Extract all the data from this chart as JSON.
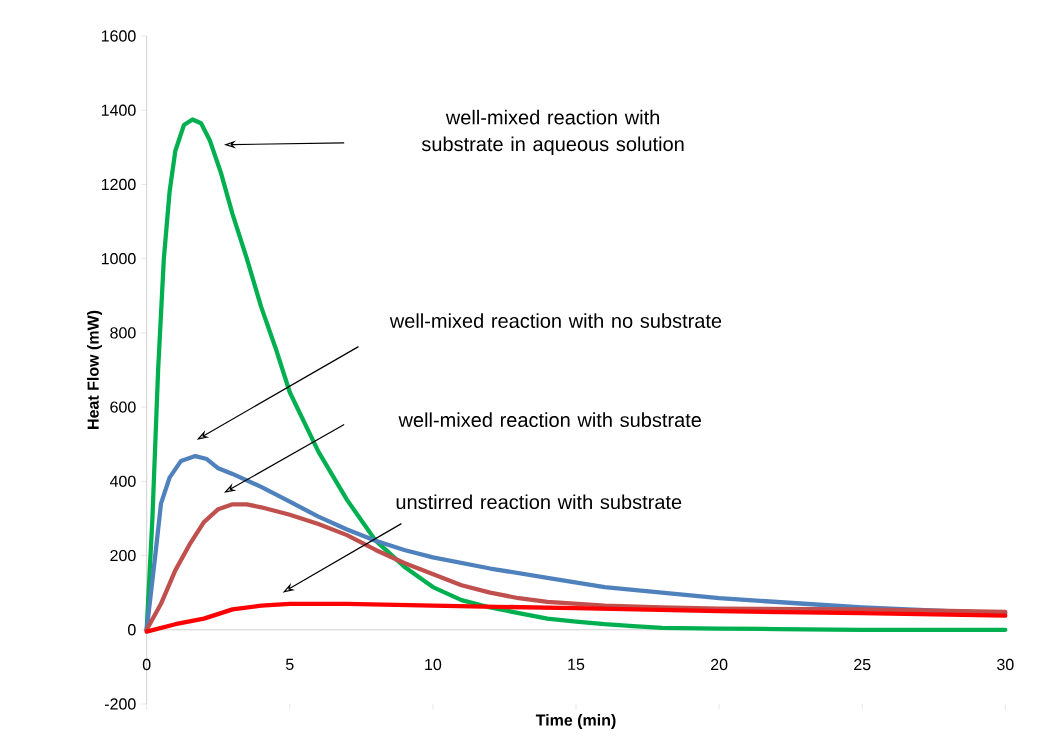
{
  "chart_data": {
    "type": "line",
    "xlabel": "Time (min)",
    "ylabel": "Heat Flow (mW)",
    "xlim": [
      0,
      30
    ],
    "ylim": [
      -200,
      1600
    ],
    "xticks": [
      0,
      5,
      10,
      15,
      20,
      25,
      30
    ],
    "yticks": [
      -200,
      0,
      200,
      400,
      600,
      800,
      1000,
      1200,
      1400,
      1600
    ],
    "grid": false,
    "marker": "none",
    "line_style": "solid",
    "series": [
      {
        "color": "#00b050",
        "x": [
          0,
          0.2,
          0.4,
          0.6,
          0.8,
          1.0,
          1.3,
          1.6,
          1.9,
          2.2,
          2.6,
          3,
          3.5,
          4,
          4.5,
          5,
          6,
          7,
          8,
          9,
          10,
          11,
          12,
          13,
          14,
          15,
          16,
          17,
          18,
          20,
          22,
          25,
          30
        ],
        "values": [
          0,
          300,
          700,
          1000,
          1180,
          1290,
          1360,
          1375,
          1365,
          1320,
          1230,
          1120,
          1000,
          870,
          760,
          640,
          480,
          350,
          240,
          170,
          115,
          80,
          60,
          45,
          30,
          22,
          15,
          10,
          5,
          3,
          2,
          0,
          0
        ]
      },
      {
        "color": "#4f81bd",
        "x": [
          0,
          0.3,
          0.5,
          0.8,
          1.2,
          1.7,
          2.1,
          2.5,
          3,
          4,
          5,
          6,
          7,
          8,
          9,
          10,
          12,
          14,
          16,
          18,
          20,
          22,
          25,
          28,
          30
        ],
        "values": [
          0,
          200,
          340,
          410,
          455,
          468,
          460,
          435,
          420,
          385,
          345,
          305,
          270,
          240,
          215,
          195,
          165,
          140,
          115,
          100,
          85,
          75,
          60,
          50,
          45
        ]
      },
      {
        "color": "#c0504d",
        "x": [
          0,
          0.5,
          1,
          1.5,
          2,
          2.5,
          3,
          3.5,
          4,
          5,
          6,
          7,
          8,
          9,
          10,
          11,
          12,
          13,
          14,
          16,
          18,
          20,
          25,
          30
        ],
        "values": [
          0,
          70,
          160,
          230,
          290,
          325,
          338,
          338,
          330,
          310,
          285,
          255,
          215,
          180,
          150,
          120,
          100,
          85,
          75,
          65,
          60,
          57,
          55,
          48
        ]
      },
      {
        "color": "#ff0000",
        "x": [
          0,
          1,
          2,
          3,
          4,
          5,
          7,
          10,
          15,
          20,
          25,
          30
        ],
        "values": [
          -5,
          15,
          30,
          55,
          65,
          70,
          70,
          65,
          58,
          50,
          45,
          38
        ]
      }
    ],
    "annotations": [
      "well-mixed reaction with substrate in aqueous solution",
      "well-mixed reaction with no substrate",
      "well-mixed reaction with substrate",
      "unstirred reaction with substrate"
    ]
  }
}
